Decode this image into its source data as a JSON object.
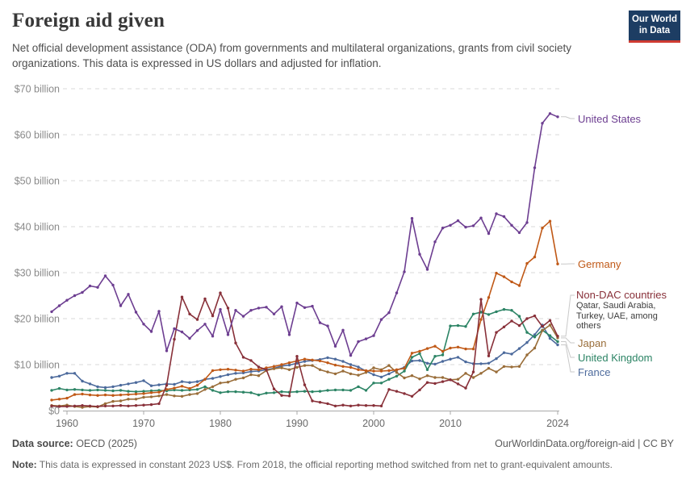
{
  "header": {
    "title": "Foreign aid given",
    "subtitle": "Net official development assistance (ODA) from governments and multilateral organizations, grants from civil society organizations. This data is expressed in US dollars and adjusted for inflation."
  },
  "logo": {
    "line1": "Our World",
    "line2": "in Data",
    "bg_color": "#1d3d63",
    "stripe_color": "#cf3b32"
  },
  "chart_data": {
    "type": "line",
    "title": "Foreign aid given",
    "unit": "US$ billion (constant 2023 prices)",
    "year_start": 1958,
    "ylim": [
      0,
      70
    ],
    "grid": "dashed-horizontal",
    "legend_position": "right-edge-labels",
    "x_ticks": [
      1960,
      1970,
      1980,
      1990,
      2000,
      2010,
      2024
    ],
    "y_ticks": [
      {
        "value": 0,
        "label": "$0"
      },
      {
        "value": 10,
        "label": "$10 billion"
      },
      {
        "value": 20,
        "label": "$20 billion"
      },
      {
        "value": 30,
        "label": "$30 billion"
      },
      {
        "value": 40,
        "label": "$40 billion"
      },
      {
        "value": 50,
        "label": "$50 billion"
      },
      {
        "value": 60,
        "label": "$60 billion"
      },
      {
        "value": 70,
        "label": "$70 billion"
      }
    ],
    "series": [
      {
        "name": "france",
        "label": "France",
        "color": "#4C6A9C",
        "values": [
          7.2,
          7.5,
          8.1,
          8.1,
          6.4,
          5.8,
          5.2,
          5.0,
          5.2,
          5.5,
          5.8,
          6.1,
          6.5,
          5.4,
          5.6,
          5.8,
          5.7,
          6.3,
          6.1,
          6.3,
          6.8,
          7.0,
          7.4,
          7.8,
          8.1,
          8.2,
          8.5,
          8.6,
          8.9,
          9.2,
          9.7,
          9.9,
          10.3,
          10.7,
          10.9,
          11.1,
          11.5,
          11.2,
          10.7,
          10.0,
          9.5,
          8.6,
          7.8,
          7.3,
          8.0,
          8.8,
          9.4,
          10.8,
          10.9,
          10.3,
          10.1,
          10.7,
          11.2,
          11.6,
          10.6,
          10.2,
          10.2,
          10.3,
          11.3,
          12.6,
          12.3,
          13.5,
          14.8,
          16.5,
          18.6,
          15.7,
          14.3
        ]
      },
      {
        "name": "united-kingdom",
        "label": "United Kingdom",
        "color": "#2C8465",
        "values": [
          4.4,
          4.8,
          4.5,
          4.6,
          4.5,
          4.4,
          4.5,
          4.4,
          4.3,
          4.4,
          4.2,
          4.1,
          4.2,
          4.3,
          4.4,
          4.3,
          4.5,
          4.4,
          4.5,
          4.6,
          5.2,
          4.4,
          3.9,
          4.1,
          4.1,
          4.0,
          3.9,
          3.4,
          3.8,
          3.9,
          4.1,
          4.0,
          4.1,
          4.2,
          4.1,
          4.2,
          4.4,
          4.5,
          4.5,
          4.4,
          5.2,
          4.4,
          6.0,
          6.0,
          6.8,
          7.5,
          8.6,
          11.6,
          12.4,
          8.9,
          11.8,
          12.1,
          18.4,
          18.5,
          18.3,
          21.0,
          21.4,
          20.9,
          21.5,
          22.0,
          21.8,
          20.5,
          17.0,
          16.0,
          17.5,
          16.3,
          15.0
        ]
      },
      {
        "name": "japan",
        "label": "Japan",
        "color": "#996D39",
        "values": [
          1.1,
          1.0,
          1.2,
          0.9,
          0.7,
          0.9,
          0.8,
          1.5,
          2.0,
          2.1,
          2.5,
          2.5,
          2.9,
          3.0,
          3.2,
          3.5,
          3.2,
          3.1,
          3.5,
          3.7,
          4.6,
          5.2,
          6.0,
          6.2,
          6.8,
          7.1,
          7.8,
          7.6,
          8.7,
          9.1,
          9.3,
          8.9,
          9.4,
          9.8,
          9.8,
          8.9,
          8.4,
          8.0,
          8.6,
          8.0,
          7.7,
          8.3,
          9.3,
          8.9,
          9.8,
          8.3,
          7.1,
          7.6,
          6.9,
          7.6,
          7.2,
          7.2,
          6.7,
          6.8,
          8.1,
          7.2,
          8.1,
          9.2,
          8.4,
          9.6,
          9.5,
          9.6,
          12.1,
          13.6,
          17.4,
          18.6,
          15.8
        ]
      },
      {
        "name": "germany",
        "label": "Germany",
        "color": "#C05917",
        "values": [
          2.3,
          2.5,
          2.7,
          3.5,
          3.6,
          3.4,
          3.3,
          3.4,
          3.3,
          3.4,
          3.5,
          3.6,
          3.7,
          3.9,
          4.0,
          4.6,
          4.9,
          5.3,
          4.8,
          5.5,
          6.8,
          8.7,
          8.9,
          9.0,
          8.8,
          8.6,
          9.0,
          8.9,
          9.3,
          9.6,
          10.0,
          10.4,
          10.8,
          11.2,
          11.0,
          10.8,
          10.4,
          9.9,
          9.6,
          9.4,
          8.9,
          8.7,
          8.6,
          8.6,
          8.7,
          8.9,
          9.2,
          12.5,
          12.9,
          13.5,
          14.0,
          12.9,
          13.6,
          13.8,
          13.4,
          13.4,
          19.8,
          24.6,
          29.9,
          29.1,
          28.0,
          27.2,
          32.0,
          33.4,
          39.7,
          41.2,
          31.9
        ]
      },
      {
        "name": "non-dac-countries",
        "label": "Non-DAC countries",
        "color": "#883039",
        "sublabel": "Qatar, Saudi Arabia, Turkey, UAE, among others",
        "values": [
          1.0,
          0.9,
          0.9,
          1.0,
          1.1,
          1.0,
          0.9,
          1.0,
          1.0,
          1.1,
          1.0,
          1.1,
          1.2,
          1.3,
          1.5,
          5.5,
          15.5,
          24.7,
          21.0,
          19.8,
          24.3,
          20.6,
          25.6,
          22.3,
          14.7,
          11.6,
          10.9,
          9.5,
          8.9,
          4.7,
          3.3,
          3.2,
          11.8,
          5.6,
          2.1,
          1.8,
          1.5,
          1.0,
          1.2,
          1.0,
          1.2,
          1.1,
          1.1,
          1.0,
          4.6,
          4.2,
          3.7,
          3.1,
          4.5,
          6.1,
          5.9,
          6.3,
          6.7,
          5.8,
          4.9,
          8.4,
          24.2,
          11.9,
          17.0,
          18.2,
          19.5,
          18.5,
          20.0,
          20.6,
          18.3,
          19.6,
          16.2
        ]
      },
      {
        "name": "united-states",
        "label": "United States",
        "color": "#6D3E91",
        "values": [
          21.5,
          22.8,
          24.0,
          25.0,
          25.7,
          27.1,
          26.8,
          29.3,
          27.3,
          22.8,
          25.3,
          21.4,
          18.8,
          17.2,
          21.6,
          13.0,
          17.8,
          17.1,
          15.7,
          17.4,
          18.8,
          16.2,
          22.0,
          16.5,
          21.8,
          20.5,
          21.8,
          22.3,
          22.5,
          21.0,
          22.6,
          16.5,
          23.4,
          22.4,
          22.7,
          19.1,
          18.4,
          14.0,
          17.5,
          12.0,
          15.0,
          15.6,
          16.3,
          19.8,
          21.3,
          25.6,
          30.2,
          41.8,
          34.0,
          30.7,
          36.7,
          39.7,
          40.3,
          41.3,
          39.9,
          40.2,
          41.9,
          38.5,
          42.8,
          42.2,
          40.3,
          38.7,
          40.9,
          52.8,
          62.5,
          64.6,
          63.9
        ]
      }
    ]
  },
  "footer": {
    "datasource_label": "Data source:",
    "datasource_value": " OECD (2025)",
    "link": "OurWorldinData.org/foreign-aid | CC BY",
    "note_label": "Note:",
    "note_text": " This data is expressed in constant 2023 US$. From 2018, the official reporting method switched from net to grant-equivalent amounts."
  }
}
